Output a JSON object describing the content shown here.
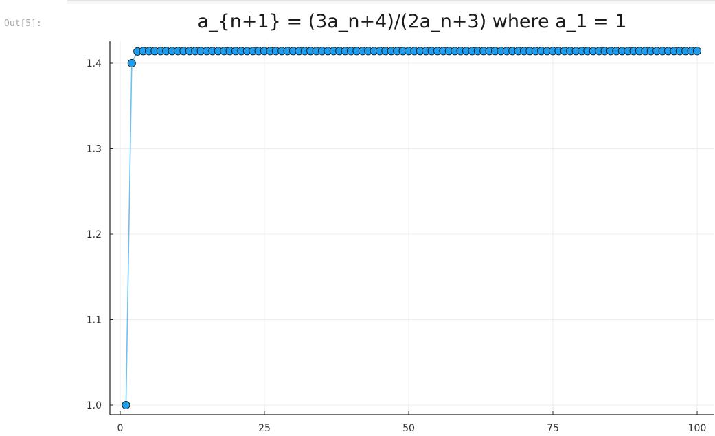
{
  "cell": {
    "prompt": "Out[5]:"
  },
  "chart_data": {
    "type": "line",
    "title": "a_{n+1} = (3a_n+4)/(2a_n+3) where a_1 = 1",
    "xlabel": "",
    "ylabel": "",
    "xlim": [
      0,
      100
    ],
    "ylim": [
      1.0,
      1.414
    ],
    "x_ticks": [
      0,
      25,
      50,
      75,
      100
    ],
    "x_tick_labels": [
      "0",
      "25",
      "50",
      "75",
      "100"
    ],
    "y_ticks": [
      1.0,
      1.1,
      1.2,
      1.3,
      1.4
    ],
    "y_tick_labels": [
      "1.0",
      "1.1",
      "1.2",
      "1.3",
      "1.4"
    ],
    "grid": true,
    "legend": "none",
    "line_color": "#6fc1ee",
    "marker_color": "#1f9eef",
    "series": [
      {
        "x_start": 1,
        "x_end": 100,
        "values": [
          1,
          1.4,
          1.4137931034,
          1.4142011834,
          1.4142131979,
          1.4142135516,
          1.414213562,
          1.4142135623,
          1.4142135624,
          1.4142135624,
          1.4142135624,
          1.4142135624,
          1.4142135624,
          1.4142135624,
          1.4142135624,
          1.4142135624,
          1.4142135624,
          1.4142135624,
          1.4142135624,
          1.4142135624,
          1.4142135624,
          1.4142135624,
          1.4142135624,
          1.4142135624,
          1.4142135624,
          1.4142135624,
          1.4142135624,
          1.4142135624,
          1.4142135624,
          1.4142135624,
          1.4142135624,
          1.4142135624,
          1.4142135624,
          1.4142135624,
          1.4142135624,
          1.4142135624,
          1.4142135624,
          1.4142135624,
          1.4142135624,
          1.4142135624,
          1.4142135624,
          1.4142135624,
          1.4142135624,
          1.4142135624,
          1.4142135624,
          1.4142135624,
          1.4142135624,
          1.4142135624,
          1.4142135624,
          1.4142135624,
          1.4142135624,
          1.4142135624,
          1.4142135624,
          1.4142135624,
          1.4142135624,
          1.4142135624,
          1.4142135624,
          1.4142135624,
          1.4142135624,
          1.4142135624,
          1.4142135624,
          1.4142135624,
          1.4142135624,
          1.4142135624,
          1.4142135624,
          1.4142135624,
          1.4142135624,
          1.4142135624,
          1.4142135624,
          1.4142135624,
          1.4142135624,
          1.4142135624,
          1.4142135624,
          1.4142135624,
          1.4142135624,
          1.4142135624,
          1.4142135624,
          1.4142135624,
          1.4142135624,
          1.4142135624,
          1.4142135624,
          1.4142135624,
          1.4142135624,
          1.4142135624,
          1.4142135624,
          1.4142135624,
          1.4142135624,
          1.4142135624,
          1.4142135624,
          1.4142135624,
          1.4142135624,
          1.4142135624,
          1.4142135624,
          1.4142135624,
          1.4142135624,
          1.4142135624,
          1.4142135624,
          1.4142135624,
          1.4142135624,
          1.4142135624
        ]
      }
    ]
  }
}
